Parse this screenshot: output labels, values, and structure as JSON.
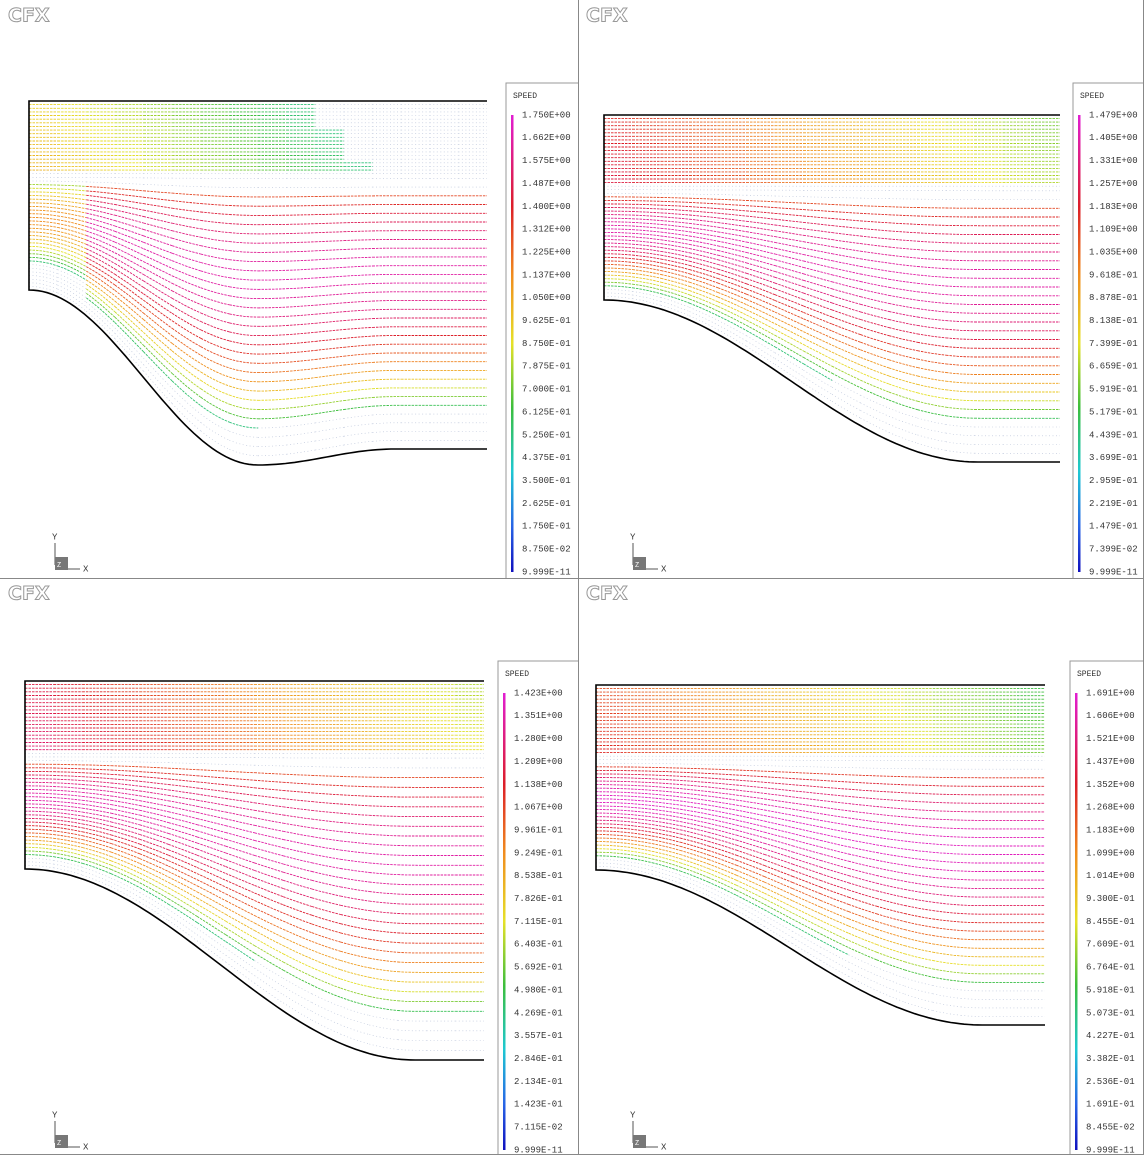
{
  "panels": [
    {
      "logo": "CFX",
      "legend": {
        "title": "SPEED",
        "labels": [
          "1.750E+00",
          "1.662E+00",
          "1.575E+00",
          "1.487E+00",
          "1.400E+00",
          "1.312E+00",
          "1.225E+00",
          "1.137E+00",
          "1.050E+00",
          "9.625E-01",
          "8.750E-01",
          "7.875E-01",
          "7.000E-01",
          "6.125E-01",
          "5.250E-01",
          "4.375E-01",
          "3.500E-01",
          "2.625E-01",
          "1.750E-01",
          "8.750E-02",
          "9.999E-11"
        ]
      },
      "axes": {
        "y": "Y",
        "z": "Z",
        "x": "X"
      }
    },
    {
      "logo": "CFX",
      "legend": {
        "title": "SPEED",
        "labels": [
          "1.479E+00",
          "1.405E+00",
          "1.331E+00",
          "1.257E+00",
          "1.183E+00",
          "1.109E+00",
          "1.035E+00",
          "9.618E-01",
          "8.878E-01",
          "8.138E-01",
          "7.399E-01",
          "6.659E-01",
          "5.919E-01",
          "5.179E-01",
          "4.439E-01",
          "3.699E-01",
          "2.959E-01",
          "2.219E-01",
          "1.479E-01",
          "7.399E-02",
          "9.999E-11"
        ]
      },
      "axes": {
        "y": "Y",
        "z": "Z",
        "x": "X"
      }
    },
    {
      "logo": "CFX",
      "legend": {
        "title": "SPEED",
        "labels": [
          "1.423E+00",
          "1.351E+00",
          "1.280E+00",
          "1.209E+00",
          "1.138E+00",
          "1.067E+00",
          "9.961E-01",
          "9.249E-01",
          "8.538E-01",
          "7.826E-01",
          "7.115E-01",
          "6.403E-01",
          "5.692E-01",
          "4.980E-01",
          "4.269E-01",
          "3.557E-01",
          "2.846E-01",
          "2.134E-01",
          "1.423E-01",
          "7.115E-02",
          "9.999E-11"
        ]
      },
      "axes": {
        "y": "Y",
        "z": "Z",
        "x": "X"
      }
    },
    {
      "logo": "CFX",
      "legend": {
        "title": "SPEED",
        "labels": [
          "1.691E+00",
          "1.606E+00",
          "1.521E+00",
          "1.437E+00",
          "1.352E+00",
          "1.268E+00",
          "1.183E+00",
          "1.099E+00",
          "1.014E+00",
          "9.300E-01",
          "8.455E-01",
          "7.609E-01",
          "6.764E-01",
          "5.918E-01",
          "5.073E-01",
          "4.227E-01",
          "3.382E-01",
          "2.536E-01",
          "1.691E-01",
          "8.455E-02",
          "9.999E-11"
        ]
      },
      "axes": {
        "y": "Y",
        "z": "Z",
        "x": "X"
      }
    }
  ]
}
